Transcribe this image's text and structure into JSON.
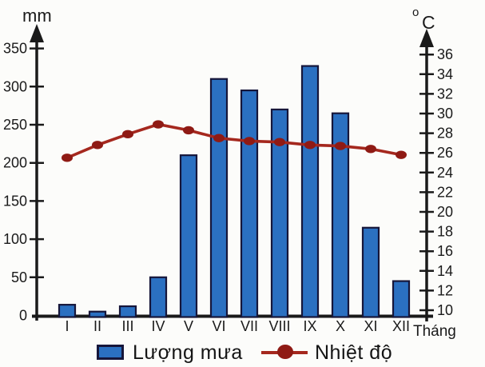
{
  "chart_data": {
    "type": "bar",
    "subtype": "bar-line-combo-climograph",
    "title": "",
    "categories": [
      "I",
      "II",
      "III",
      "IV",
      "V",
      "VI",
      "VII",
      "VIII",
      "IX",
      "X",
      "XI",
      "XII"
    ],
    "series": [
      {
        "name": "Lượng mưa",
        "type": "bar",
        "axis": "left",
        "unit": "mm",
        "values": [
          14,
          5,
          12,
          50,
          210,
          310,
          295,
          270,
          327,
          265,
          115,
          45
        ],
        "color": "#2b70c1",
        "border_color": "#16163a"
      },
      {
        "name": "Nhiệt độ",
        "type": "line",
        "axis": "right",
        "unit": "°C",
        "values": [
          25.5,
          26.8,
          27.9,
          28.9,
          28.3,
          27.5,
          27.2,
          27.1,
          26.8,
          26.7,
          26.4,
          25.8
        ],
        "color": "#a5281e",
        "marker_color": "#8f1a14"
      }
    ],
    "left_axis": {
      "label": "mm",
      "min": 0,
      "max": 350,
      "tick_step": 50,
      "ticks": [
        0,
        50,
        100,
        150,
        200,
        250,
        300,
        350
      ]
    },
    "right_axis": {
      "label_sup": "o",
      "label": "C",
      "min": 10,
      "max": 36,
      "tick_step": 2,
      "ticks": [
        10,
        12,
        14,
        16,
        18,
        20,
        22,
        24,
        26,
        28,
        30,
        32,
        34,
        36
      ]
    },
    "x_axis": {
      "label": "Tháng"
    },
    "legend": {
      "position": "bottom",
      "entries": [
        "Lượng mưa",
        "Nhiệt độ"
      ]
    },
    "grid": false
  }
}
